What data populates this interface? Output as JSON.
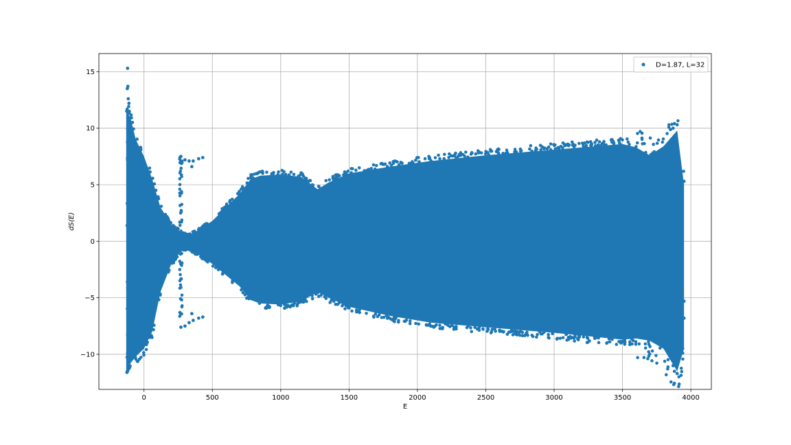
{
  "chart_data": {
    "type": "scatter",
    "title": "",
    "xlabel": "E",
    "ylabel": "dS(E)",
    "xlim": [
      -330,
      4150
    ],
    "ylim": [
      -13.1,
      16.6
    ],
    "xticks": [
      0,
      500,
      1000,
      1500,
      2000,
      2500,
      3000,
      3500,
      4000
    ],
    "xtick_labels": [
      "0",
      "500",
      "1000",
      "1500",
      "2000",
      "2500",
      "3000",
      "3500",
      "4000"
    ],
    "yticks": [
      -10,
      -5,
      0,
      5,
      10,
      15
    ],
    "ytick_labels": [
      "−10",
      "−5",
      "0",
      "5",
      "10",
      "15"
    ],
    "grid": true,
    "legend_position": "top-right",
    "series": [
      {
        "name": "D=1.87, L=32",
        "color": "#1f77b4",
        "marker": "o",
        "envelope_upper": [
          [
            -130,
            11.5
          ],
          [
            -100,
            11
          ],
          [
            -60,
            9
          ],
          [
            0,
            7.5
          ],
          [
            60,
            5.5
          ],
          [
            120,
            3
          ],
          [
            200,
            1.5
          ],
          [
            270,
            0.8
          ],
          [
            320,
            0.5
          ],
          [
            400,
            1
          ],
          [
            500,
            1.8
          ],
          [
            600,
            3
          ],
          [
            700,
            4.2
          ],
          [
            780,
            5.5
          ],
          [
            850,
            5.8
          ],
          [
            1000,
            5.9
          ],
          [
            1150,
            5.7
          ],
          [
            1270,
            4.6
          ],
          [
            1350,
            5.2
          ],
          [
            1500,
            6
          ],
          [
            1800,
            6.6
          ],
          [
            2100,
            7.1
          ],
          [
            2500,
            7.6
          ],
          [
            3000,
            8.1
          ],
          [
            3500,
            8.6
          ],
          [
            3600,
            8.3
          ],
          [
            3700,
            7.6
          ],
          [
            3800,
            8.4
          ],
          [
            3900,
            9.8
          ],
          [
            3950,
            5
          ]
        ],
        "envelope_lower": [
          [
            -130,
            -11.5
          ],
          [
            -100,
            -10.8
          ],
          [
            -60,
            -10.2
          ],
          [
            0,
            -9.5
          ],
          [
            60,
            -8
          ],
          [
            120,
            -4.5
          ],
          [
            200,
            -2
          ],
          [
            270,
            -0.9
          ],
          [
            320,
            -0.6
          ],
          [
            400,
            -1.2
          ],
          [
            500,
            -2
          ],
          [
            600,
            -3
          ],
          [
            700,
            -4
          ],
          [
            780,
            -5.2
          ],
          [
            850,
            -5.5
          ],
          [
            1000,
            -5.6
          ],
          [
            1150,
            -5.3
          ],
          [
            1270,
            -4.5
          ],
          [
            1350,
            -5
          ],
          [
            1500,
            -5.8
          ],
          [
            1800,
            -6.6
          ],
          [
            2100,
            -7.2
          ],
          [
            2500,
            -7.6
          ],
          [
            3000,
            -8.1
          ],
          [
            3500,
            -8.7
          ],
          [
            3600,
            -8.6
          ],
          [
            3700,
            -8.8
          ],
          [
            3800,
            -9.5
          ],
          [
            3900,
            -11.5
          ],
          [
            3950,
            -9.5
          ]
        ],
        "outliers": [
          [
            -120,
            15.3
          ],
          [
            -118,
            13.7
          ],
          [
            -122,
            13.5
          ],
          [
            -115,
            12.6
          ],
          [
            -110,
            12.2
          ],
          [
            -125,
            -11.6
          ],
          [
            -120,
            -11.5
          ],
          [
            -118,
            -10.4
          ],
          [
            -112,
            -9.8
          ],
          [
            270,
            7.5
          ],
          [
            300,
            7.2
          ],
          [
            330,
            7.1
          ],
          [
            360,
            7.1
          ],
          [
            400,
            7.3
          ],
          [
            430,
            7.4
          ],
          [
            350,
            6.6
          ],
          [
            270,
            -7.6
          ],
          [
            300,
            -7.5
          ],
          [
            330,
            -7.2
          ],
          [
            360,
            -7
          ],
          [
            400,
            -6.8
          ],
          [
            430,
            -6.7
          ],
          [
            350,
            -6.4
          ],
          [
            3880,
            10.4
          ],
          [
            3900,
            10.3
          ],
          [
            3870,
            10
          ],
          [
            3900,
            -11.7
          ],
          [
            3880,
            -11.5
          ],
          [
            3870,
            -11
          ],
          [
            3950,
            5.3
          ],
          [
            3950,
            -5.3
          ],
          [
            3950,
            -6.8
          ],
          [
            3940,
            -9.5
          ]
        ],
        "spike_columns": [
          {
            "x": -115,
            "upper": 11.3,
            "lower": -11.6
          },
          {
            "x": 270,
            "upper": 7.6,
            "lower": -7.6
          }
        ]
      }
    ]
  }
}
